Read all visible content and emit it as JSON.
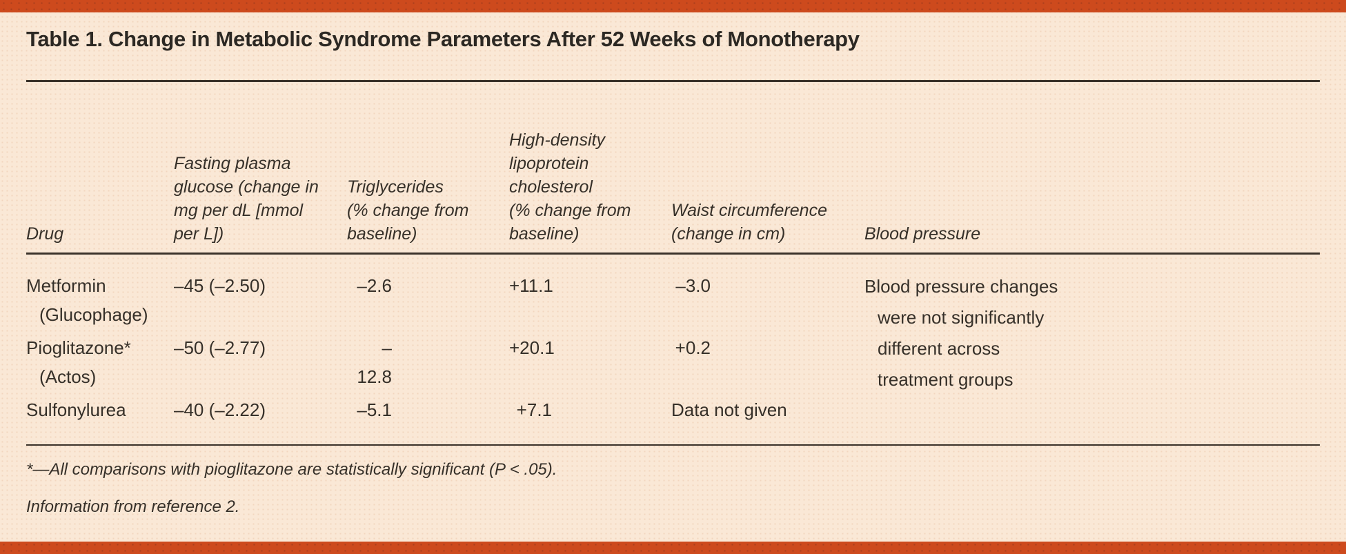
{
  "page": {
    "background_color": "#fae8d6",
    "accent_bar_color": "#cd4a1d",
    "text_color": "#363029"
  },
  "title": "Table 1. Change in Metabolic Syndrome Parameters After 52 Weeks of Monotherapy",
  "table": {
    "headers": {
      "drug": "Drug",
      "fasting_glucose": "Fasting plasma\nglucose (change in\nmg per dL [mmol\nper L])",
      "triglycerides": "Triglycerides\n(% change from\nbaseline)",
      "hdl": "High-density\nlipoprotein\ncholesterol\n(% change from\nbaseline)",
      "waist": "Waist circumference\n(change in cm)",
      "blood_pressure": "Blood pressure"
    },
    "rows": [
      {
        "drug": "Metformin\n(Glucophage)",
        "fasting_glucose": "–45 (–2.50)",
        "triglycerides": "–2.6",
        "hdl": "+11.1",
        "waist": "–3.0"
      },
      {
        "drug": "Pioglitazone*\n(Actos)",
        "fasting_glucose": "–50 (–2.77)",
        "triglycerides": "–12.8",
        "hdl": "+20.1",
        "waist": "+0.2"
      },
      {
        "drug": "Sulfonylurea",
        "fasting_glucose": "–40 (–2.22)",
        "triglycerides": "–5.1",
        "hdl": "+7.1",
        "waist": "Data not given"
      }
    ],
    "blood_pressure_note": "Blood pressure changes\nwere not significantly\ndifferent across\ntreatment groups"
  },
  "footnotes": [
    "*—All comparisons with pioglitazone are statistically significant (P < .05).",
    "Information from reference 2."
  ]
}
